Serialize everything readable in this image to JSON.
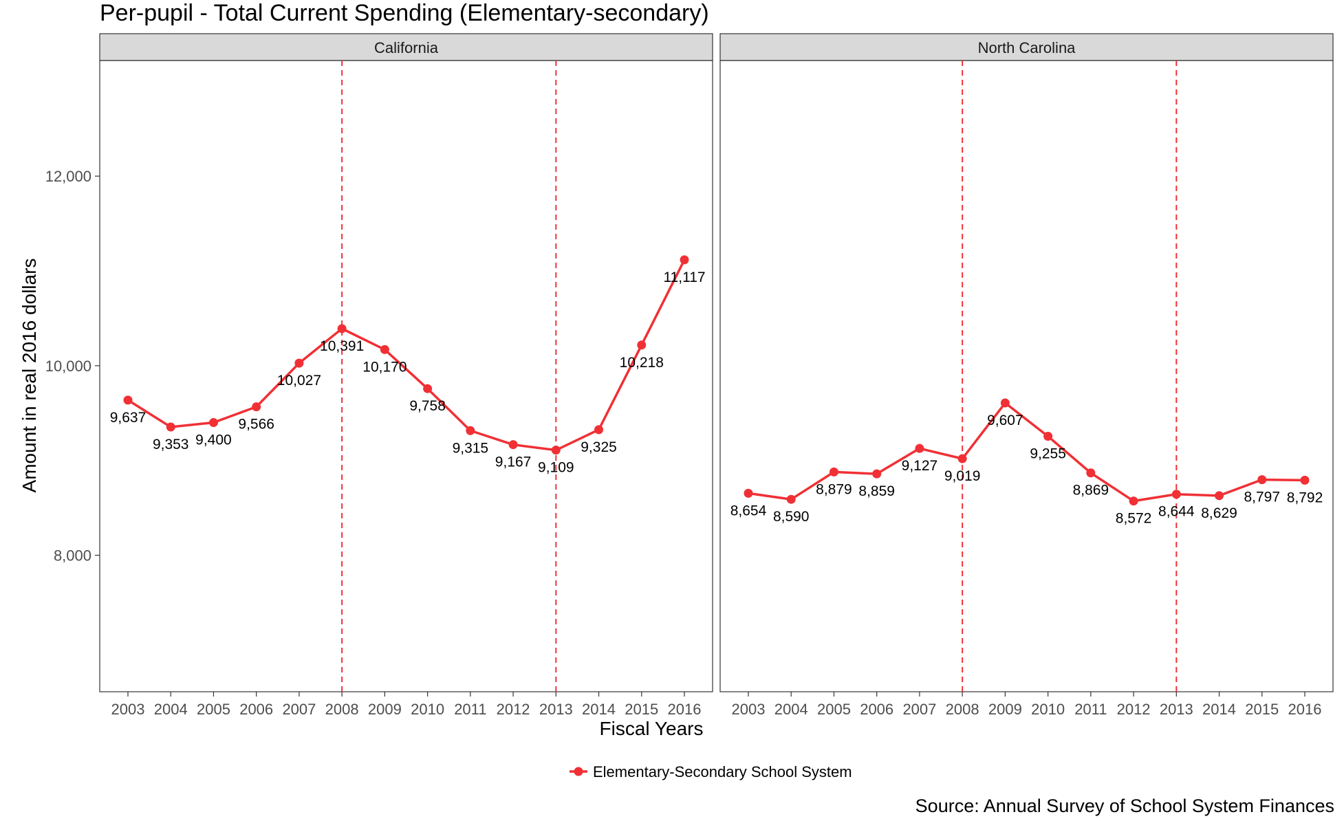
{
  "chart_data": {
    "type": "line",
    "title": "Per-pupil - Total Current Spending (Elementary-secondary)",
    "xlabel": "Fiscal Years",
    "ylabel": "Amount in real 2016 dollars",
    "caption": "Source: Annual Survey of School System Finances",
    "x": [
      2003,
      2004,
      2005,
      2006,
      2007,
      2008,
      2009,
      2010,
      2011,
      2012,
      2013,
      2014,
      2015,
      2016
    ],
    "ylim": [
      6560,
      13220
    ],
    "yticks": [
      8000,
      10000,
      12000
    ],
    "ytick_labels": [
      "8,000",
      "10,000",
      "12,000"
    ],
    "vlines": [
      2008,
      2013
    ],
    "legend": {
      "position": "bottom",
      "label": "Elementary-Secondary School System"
    },
    "color": "#f03035",
    "panels": [
      {
        "name": "California",
        "values": [
          9637,
          9353,
          9400,
          9566,
          10027,
          10391,
          10170,
          9758,
          9315,
          9167,
          9109,
          9325,
          10218,
          11117
        ],
        "labels": [
          "9,637",
          "9,353",
          "9,400",
          "9,566",
          "10,027",
          "10,391",
          "10,170",
          "9,758",
          "9,315",
          "9,167",
          "9,109",
          "9,325",
          "10,218",
          "11,117"
        ]
      },
      {
        "name": "North Carolina",
        "values": [
          8654,
          8590,
          8879,
          8859,
          9127,
          9019,
          9607,
          9255,
          8869,
          8572,
          8644,
          8629,
          8797,
          8792
        ],
        "labels": [
          "8,654",
          "8,590",
          "8,879",
          "8,859",
          "9,127",
          "9,019",
          "9,607",
          "9,255",
          "8,869",
          "8,572",
          "8,644",
          "8,629",
          "8,797",
          "8,792"
        ]
      }
    ]
  }
}
